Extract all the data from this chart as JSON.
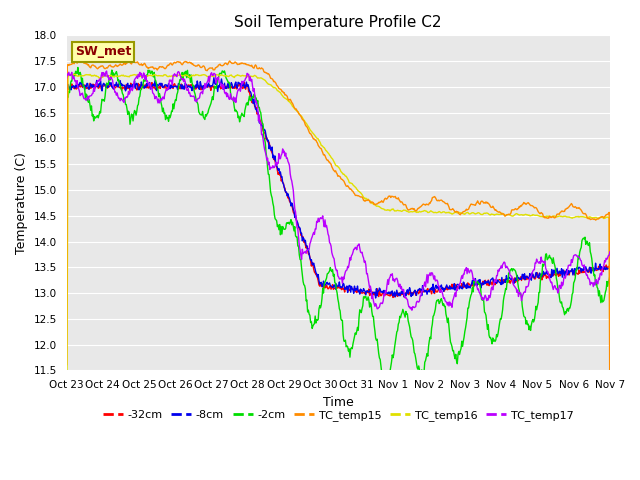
{
  "title": "Soil Temperature Profile C2",
  "xlabel": "Time",
  "ylabel": "Temperature (C)",
  "ylim": [
    11.5,
    18.0
  ],
  "yticks": [
    11.5,
    12.0,
    12.5,
    13.0,
    13.5,
    14.0,
    14.5,
    15.0,
    15.5,
    16.0,
    16.5,
    17.0,
    17.5,
    18.0
  ],
  "fig_facecolor": "#ffffff",
  "plot_facecolor": "#e8e8e8",
  "series_colors": {
    "TC_temp15": "#ff8c00",
    "TC_temp16": "#e0e000",
    "TC_temp17": "#bb00ff",
    "neg32cm": "#ff0000",
    "neg8cm": "#0000ee",
    "neg2cm": "#00dd00"
  },
  "series_lw": 1.0,
  "legend_labels": [
    "-32cm",
    "-8cm",
    "-2cm",
    "TC_temp15",
    "TC_temp16",
    "TC_temp17"
  ],
  "legend_colors": [
    "#ff0000",
    "#0000ee",
    "#00dd00",
    "#ff8c00",
    "#e0e000",
    "#bb00ff"
  ],
  "xtick_labels": [
    "Oct 23",
    "Oct 24",
    "Oct 25",
    "Oct 26",
    "Oct 27",
    "Oct 28",
    "Oct 29",
    "Oct 30",
    "Oct 31",
    "Nov 1",
    "Nov 2",
    "Nov 3",
    "Nov 4",
    "Nov 5",
    "Nov 6",
    "Nov 7"
  ],
  "sw_met_text": "SW_met",
  "sw_met_facecolor": "#ffffaa",
  "sw_met_edgecolor": "#999900",
  "sw_met_textcolor": "#8b0000",
  "grid_color": "#ffffff",
  "title_fontsize": 11,
  "tick_fontsize": 7.5,
  "ylabel_fontsize": 9,
  "xlabel_fontsize": 9
}
